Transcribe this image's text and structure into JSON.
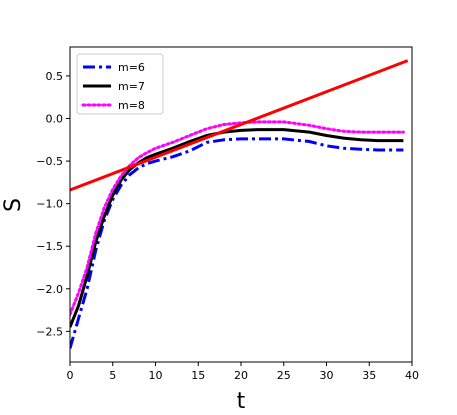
{
  "chart_data": {
    "type": "line",
    "title": "",
    "xlabel": "t",
    "ylabel": "S",
    "xlim": [
      0,
      40
    ],
    "ylim": [
      -2.86,
      0.84
    ],
    "x_ticks": [
      0,
      5,
      10,
      15,
      20,
      25,
      30,
      35,
      40
    ],
    "x_tick_labels": [
      "0",
      "5",
      "10",
      "15",
      "20",
      "25",
      "30",
      "35",
      "40"
    ],
    "y_ticks": [
      -2.5,
      -2.0,
      -1.5,
      -1.0,
      -0.5,
      0.0,
      0.5
    ],
    "y_tick_labels": [
      "−2.5",
      "−2.0",
      "−1.5",
      "−1.0",
      "−0.5",
      "0.0",
      "0.5"
    ],
    "grid": false,
    "legend_position": "top-left",
    "series": [
      {
        "name": "m=6",
        "color": "#0000ff",
        "style": "dashdot",
        "points": [
          [
            0,
            -2.7
          ],
          [
            1,
            -2.35
          ],
          [
            2,
            -2.0
          ],
          [
            3,
            -1.55
          ],
          [
            4,
            -1.2
          ],
          [
            5,
            -0.95
          ],
          [
            6,
            -0.78
          ],
          [
            7,
            -0.66
          ],
          [
            8,
            -0.58
          ],
          [
            9,
            -0.53
          ],
          [
            10,
            -0.5
          ],
          [
            12,
            -0.45
          ],
          [
            14,
            -0.38
          ],
          [
            16,
            -0.28
          ],
          [
            18,
            -0.25
          ],
          [
            20,
            -0.24
          ],
          [
            22,
            -0.24
          ],
          [
            25,
            -0.24
          ],
          [
            28,
            -0.27
          ],
          [
            30,
            -0.32
          ],
          [
            32,
            -0.35
          ],
          [
            34,
            -0.36
          ],
          [
            36,
            -0.37
          ],
          [
            38,
            -0.37
          ],
          [
            39,
            -0.37
          ]
        ]
      },
      {
        "name": "m=7",
        "color": "#000000",
        "style": "solid",
        "points": [
          [
            0,
            -2.45
          ],
          [
            1,
            -2.2
          ],
          [
            2,
            -1.85
          ],
          [
            3,
            -1.45
          ],
          [
            4,
            -1.15
          ],
          [
            5,
            -0.9
          ],
          [
            6,
            -0.72
          ],
          [
            7,
            -0.6
          ],
          [
            8,
            -0.52
          ],
          [
            9,
            -0.46
          ],
          [
            10,
            -0.42
          ],
          [
            12,
            -0.35
          ],
          [
            14,
            -0.27
          ],
          [
            16,
            -0.2
          ],
          [
            18,
            -0.16
          ],
          [
            20,
            -0.14
          ],
          [
            22,
            -0.13
          ],
          [
            25,
            -0.13
          ],
          [
            28,
            -0.16
          ],
          [
            30,
            -0.2
          ],
          [
            32,
            -0.23
          ],
          [
            34,
            -0.25
          ],
          [
            36,
            -0.26
          ],
          [
            38,
            -0.26
          ],
          [
            39,
            -0.26
          ]
        ]
      },
      {
        "name": "m=8",
        "color": "#ff00ff",
        "style": "dotted",
        "points": [
          [
            0,
            -2.3
          ],
          [
            1,
            -2.05
          ],
          [
            2,
            -1.75
          ],
          [
            3,
            -1.35
          ],
          [
            4,
            -1.05
          ],
          [
            5,
            -0.83
          ],
          [
            6,
            -0.67
          ],
          [
            7,
            -0.55
          ],
          [
            8,
            -0.46
          ],
          [
            9,
            -0.4
          ],
          [
            10,
            -0.35
          ],
          [
            12,
            -0.28
          ],
          [
            14,
            -0.2
          ],
          [
            16,
            -0.12
          ],
          [
            18,
            -0.07
          ],
          [
            20,
            -0.05
          ],
          [
            22,
            -0.04
          ],
          [
            25,
            -0.04
          ],
          [
            28,
            -0.08
          ],
          [
            30,
            -0.12
          ],
          [
            32,
            -0.15
          ],
          [
            34,
            -0.16
          ],
          [
            36,
            -0.16
          ],
          [
            38,
            -0.16
          ],
          [
            39,
            -0.16
          ]
        ]
      },
      {
        "name": "",
        "color": "#ff0000",
        "style": "solid",
        "points": [
          [
            0,
            -0.84
          ],
          [
            39.5,
            0.68
          ]
        ]
      }
    ]
  }
}
